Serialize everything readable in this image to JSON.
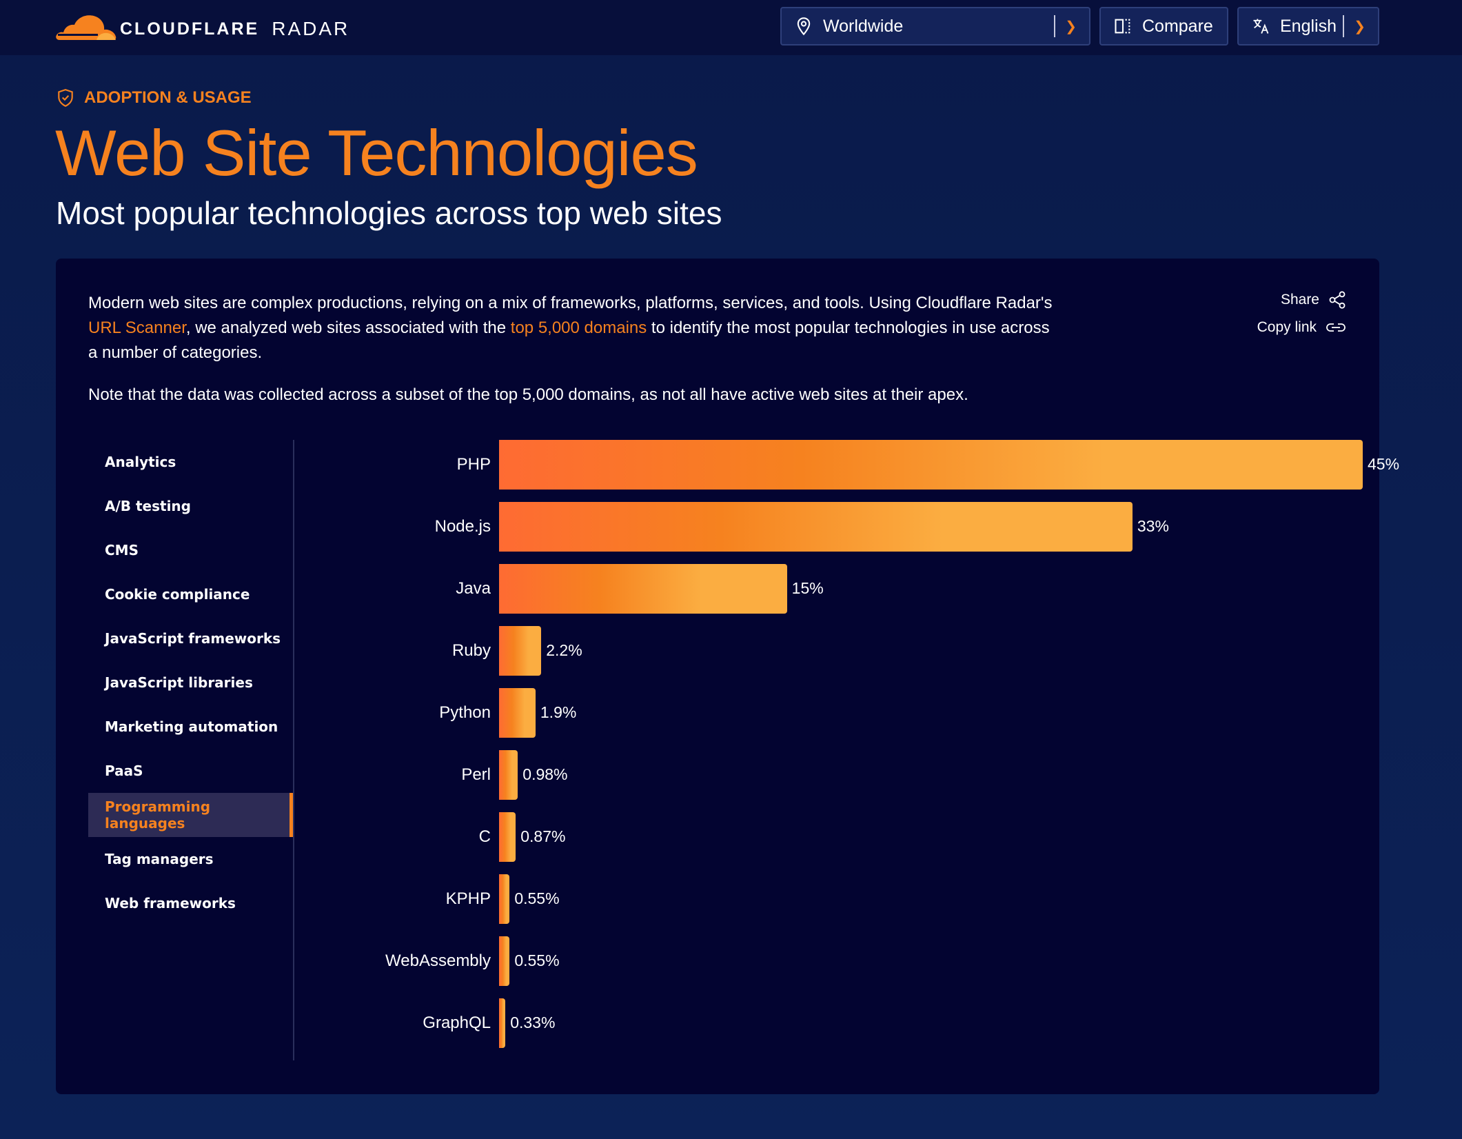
{
  "header": {
    "logo_text": "CLOUDFLARE",
    "product": "RADAR",
    "location": "Worldwide",
    "compare": "Compare",
    "language": "English"
  },
  "page": {
    "eyebrow": "ADOPTION & USAGE",
    "title": "Web Site Technologies",
    "subtitle": "Most popular technologies across top web sites"
  },
  "card": {
    "desc_1": "Modern web sites are complex productions, relying on a mix of frameworks, platforms, services, and tools. Using Cloudflare Radar's ",
    "link_scanner": "URL Scanner",
    "desc_2": ", we analyzed web sites associated with the ",
    "link_domains": "top 5,000 domains",
    "desc_3": " to identify the most popular technologies in use across a number of categories.",
    "note": "Note that the data was collected across a subset of the top 5,000 domains, as not all have active web sites at their apex.",
    "share": "Share",
    "copy_link": "Copy link"
  },
  "sidebar": {
    "items": [
      {
        "label": "Analytics"
      },
      {
        "label": "A/B testing"
      },
      {
        "label": "CMS"
      },
      {
        "label": "Cookie compliance"
      },
      {
        "label": "JavaScript frameworks"
      },
      {
        "label": "JavaScript libraries"
      },
      {
        "label": "Marketing automation"
      },
      {
        "label": "PaaS"
      },
      {
        "label": "Programming languages",
        "active": true
      },
      {
        "label": "Tag managers"
      },
      {
        "label": "Web frameworks"
      }
    ]
  },
  "chart_data": {
    "type": "bar",
    "orientation": "horizontal",
    "categories": [
      "PHP",
      "Node.js",
      "Java",
      "Ruby",
      "Python",
      "Perl",
      "C",
      "KPHP",
      "WebAssembly",
      "GraphQL"
    ],
    "values": [
      45,
      33,
      15,
      2.2,
      1.9,
      0.98,
      0.87,
      0.55,
      0.55,
      0.33
    ],
    "value_labels": [
      "45%",
      "33%",
      "15%",
      "2.2%",
      "1.9%",
      "0.98%",
      "0.87%",
      "0.55%",
      "0.55%",
      "0.33%"
    ],
    "max_value": 45,
    "colors": {
      "start": "#fe6b33",
      "mid": "#f6821f",
      "end": "#fbad41"
    }
  }
}
